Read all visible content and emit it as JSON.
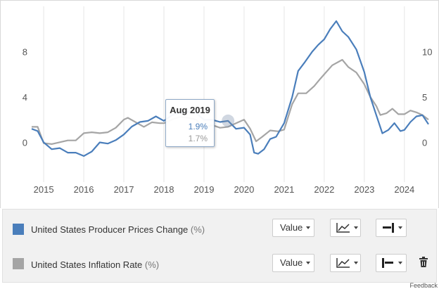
{
  "chart_data": {
    "type": "line",
    "title": "",
    "x_ticks": [
      "2015",
      "2016",
      "2017",
      "2018",
      "2019",
      "2020",
      "2021",
      "2022",
      "2023",
      "2024"
    ],
    "y_left_ticks": [
      "8",
      "4",
      "0"
    ],
    "y_right_ticks": [
      "10",
      "5",
      "0"
    ],
    "y_left_range": [
      -3.5,
      12
    ],
    "y_right_range": [
      -4.4,
      15
    ],
    "xlim": [
      2014.7,
      2024.6
    ],
    "grid": "vertical",
    "series": [
      {
        "name": "United States Producer Prices Change",
        "unit": "%",
        "axis": "left",
        "color": "#4a7ebb",
        "points": [
          [
            2014.7,
            1.2
          ],
          [
            2014.85,
            1.0
          ],
          [
            2015.0,
            0.0
          ],
          [
            2015.2,
            -0.6
          ],
          [
            2015.4,
            -0.5
          ],
          [
            2015.6,
            -0.9
          ],
          [
            2015.8,
            -0.9
          ],
          [
            2016.0,
            -1.2
          ],
          [
            2016.2,
            -0.8
          ],
          [
            2016.4,
            0.0
          ],
          [
            2016.6,
            -0.1
          ],
          [
            2016.8,
            0.2
          ],
          [
            2017.0,
            0.7
          ],
          [
            2017.2,
            1.4
          ],
          [
            2017.4,
            1.8
          ],
          [
            2017.6,
            1.9
          ],
          [
            2017.8,
            2.3
          ],
          [
            2018.0,
            1.9
          ],
          [
            2018.2,
            2.4
          ],
          [
            2018.4,
            2.6
          ],
          [
            2018.6,
            2.7
          ],
          [
            2018.8,
            2.6
          ],
          [
            2019.0,
            2.0
          ],
          [
            2019.2,
            2.0
          ],
          [
            2019.4,
            1.8
          ],
          [
            2019.6,
            1.9
          ],
          [
            2019.8,
            1.2
          ],
          [
            2020.0,
            1.3
          ],
          [
            2020.15,
            0.7
          ],
          [
            2020.25,
            -0.9
          ],
          [
            2020.35,
            -1.0
          ],
          [
            2020.5,
            -0.6
          ],
          [
            2020.65,
            0.3
          ],
          [
            2020.8,
            0.5
          ],
          [
            2021.0,
            1.7
          ],
          [
            2021.2,
            4.0
          ],
          [
            2021.35,
            6.3
          ],
          [
            2021.5,
            7.0
          ],
          [
            2021.7,
            8.0
          ],
          [
            2021.85,
            8.6
          ],
          [
            2022.0,
            9.1
          ],
          [
            2022.15,
            10.0
          ],
          [
            2022.3,
            10.7
          ],
          [
            2022.45,
            9.8
          ],
          [
            2022.6,
            9.3
          ],
          [
            2022.8,
            8.2
          ],
          [
            2023.0,
            6.2
          ],
          [
            2023.15,
            4.0
          ],
          [
            2023.3,
            2.4
          ],
          [
            2023.45,
            0.8
          ],
          [
            2023.6,
            1.1
          ],
          [
            2023.75,
            1.7
          ],
          [
            2023.9,
            1.0
          ],
          [
            2024.0,
            1.1
          ],
          [
            2024.15,
            1.8
          ],
          [
            2024.3,
            2.3
          ],
          [
            2024.45,
            2.4
          ],
          [
            2024.6,
            1.6
          ]
        ]
      },
      {
        "name": "United States Inflation Rate",
        "unit": "%",
        "axis": "right",
        "color": "#a5a5a5",
        "points": [
          [
            2014.7,
            1.7
          ],
          [
            2014.85,
            1.7
          ],
          [
            2015.0,
            -0.1
          ],
          [
            2015.2,
            -0.2
          ],
          [
            2015.4,
            0.0
          ],
          [
            2015.6,
            0.2
          ],
          [
            2015.8,
            0.2
          ],
          [
            2016.0,
            1.0
          ],
          [
            2016.2,
            1.1
          ],
          [
            2016.4,
            1.0
          ],
          [
            2016.6,
            1.1
          ],
          [
            2016.8,
            1.6
          ],
          [
            2017.0,
            2.5
          ],
          [
            2017.1,
            2.7
          ],
          [
            2017.3,
            2.2
          ],
          [
            2017.5,
            1.7
          ],
          [
            2017.7,
            2.2
          ],
          [
            2017.9,
            2.1
          ],
          [
            2018.0,
            2.1
          ],
          [
            2018.2,
            2.5
          ],
          [
            2018.4,
            2.8
          ],
          [
            2018.6,
            2.7
          ],
          [
            2018.8,
            2.5
          ],
          [
            2019.0,
            1.6
          ],
          [
            2019.2,
            1.9
          ],
          [
            2019.4,
            1.6
          ],
          [
            2019.6,
            1.7
          ],
          [
            2019.8,
            2.1
          ],
          [
            2020.0,
            2.5
          ],
          [
            2020.15,
            1.5
          ],
          [
            2020.3,
            0.1
          ],
          [
            2020.45,
            0.6
          ],
          [
            2020.65,
            1.3
          ],
          [
            2020.85,
            1.2
          ],
          [
            2021.0,
            1.4
          ],
          [
            2021.2,
            4.2
          ],
          [
            2021.35,
            5.4
          ],
          [
            2021.55,
            5.4
          ],
          [
            2021.75,
            6.2
          ],
          [
            2021.9,
            7.0
          ],
          [
            2022.0,
            7.5
          ],
          [
            2022.2,
            8.5
          ],
          [
            2022.45,
            9.1
          ],
          [
            2022.6,
            8.3
          ],
          [
            2022.8,
            7.7
          ],
          [
            2023.0,
            6.4
          ],
          [
            2023.15,
            5.0
          ],
          [
            2023.3,
            4.0
          ],
          [
            2023.4,
            3.0
          ],
          [
            2023.55,
            3.2
          ],
          [
            2023.7,
            3.7
          ],
          [
            2023.85,
            3.1
          ],
          [
            2024.0,
            3.1
          ],
          [
            2024.15,
            3.5
          ],
          [
            2024.3,
            3.3
          ],
          [
            2024.45,
            3.0
          ],
          [
            2024.6,
            2.5
          ]
        ]
      }
    ]
  },
  "tooltip": {
    "date": "Aug 2019",
    "value_1": "1.9%",
    "value_2": "1.7%",
    "color_1": "#4a7ebb",
    "color_2": "#999999"
  },
  "legend": {
    "rows": [
      {
        "color": "#4a7ebb",
        "label": "United States Producer Prices Change",
        "unit": "(%)",
        "value_label": "Value",
        "chart_type_icon": "line-chart-icon",
        "axis_icon": "axis-right-icon"
      },
      {
        "color": "#a5a5a5",
        "label": "United States Inflation Rate",
        "unit": "(%)",
        "value_label": "Value",
        "chart_type_icon": "line-chart-icon",
        "axis_icon": "axis-left-icon",
        "delete_icon": "trash-icon"
      }
    ]
  },
  "feedback": "Feedback"
}
